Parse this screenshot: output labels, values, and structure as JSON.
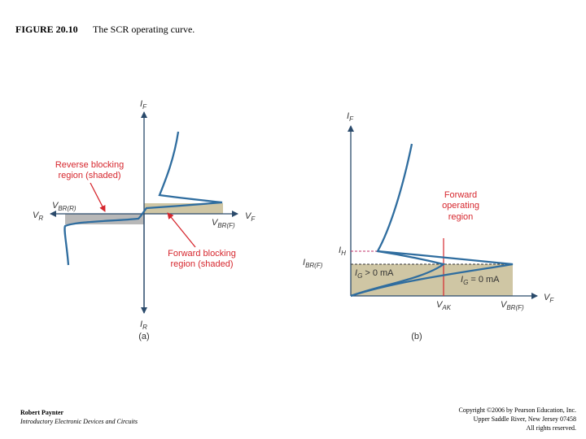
{
  "caption": {
    "number": "FIGURE 20.10",
    "title": "The SCR operating curve."
  },
  "colors": {
    "axis": "#2a4a6b",
    "curve": "#2f6d9f",
    "shade": "#cfc6a4",
    "grayband": "#b8b8b8",
    "accent": "#d6272e",
    "label": "#333333"
  },
  "panel_a": {
    "axis_y_top": "I",
    "axis_y_top_sub": "F",
    "axis_y_bottom": "I",
    "axis_y_bottom_sub": "R",
    "axis_x_left": "V",
    "axis_x_left_sub": "R",
    "axis_x_right": "V",
    "axis_x_right_sub": "F",
    "vbr_r": "V",
    "vbr_r_sub": "BR(R)",
    "vbr_f": "V",
    "vbr_f_sub": "BR(F)",
    "reverse_label_1": "Reverse blocking",
    "reverse_label_2": "region (shaded)",
    "forward_label_1": "Forward blocking",
    "forward_label_2": "region (shaded)",
    "tag": "(a)"
  },
  "panel_b": {
    "axis_y": "I",
    "axis_y_sub": "F",
    "axis_x": "V",
    "axis_x_sub": "F",
    "ih": "I",
    "ih_sub": "H",
    "ibr": "I",
    "ibr_sub": "BR(F)",
    "ig_pos": "I",
    "ig_pos_sub": "G",
    "ig_pos_rest": " > 0 mA",
    "ig_zero": "I",
    "ig_zero_sub": "G",
    "ig_zero_rest": " = 0 mA",
    "vak": "V",
    "vak_sub": "AK",
    "vbr_f": "V",
    "vbr_f_sub": "BR(F)",
    "fwd_label_1": "Forward",
    "fwd_label_2": "operating",
    "fwd_label_3": "region",
    "tag": "(b)"
  },
  "footer": {
    "author": "Robert Paynter",
    "book": "Introductory Electronic Devices and Circuits",
    "copyright_1": "Copyright ©2006 by Pearson Education, Inc.",
    "copyright_2": "Upper Saddle River, New Jersey 07458",
    "copyright_3": "All rights reserved."
  }
}
